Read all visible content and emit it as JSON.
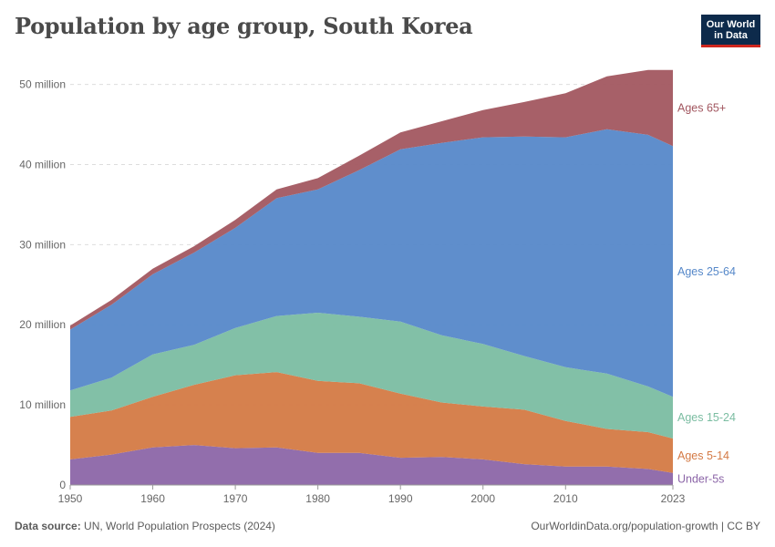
{
  "title": "Population by age group, South Korea",
  "logo": {
    "line1": "Our World",
    "line2": "in Data"
  },
  "footer": {
    "source_label": "Data source:",
    "source_text": "UN, World Population Prospects (2024)",
    "url": "OurWorldinData.org/population-growth | CC BY"
  },
  "chart_data": {
    "type": "area",
    "stacked": true,
    "title": "Population by age group, South Korea",
    "xlabel": "",
    "ylabel": "",
    "xlim": [
      1950,
      2023
    ],
    "ylim": [
      0,
      52000000
    ],
    "x_ticks": [
      1950,
      1960,
      1970,
      1980,
      1990,
      2000,
      2010,
      2023
    ],
    "y_ticks": [
      0,
      10000000,
      20000000,
      30000000,
      40000000,
      50000000
    ],
    "y_tick_labels": [
      "0",
      "10 million",
      "20 million",
      "30 million",
      "40 million",
      "50 million"
    ],
    "grid": "horizontal dashed",
    "legend": "inline labels at right end of series",
    "x": [
      1950,
      1955,
      1960,
      1965,
      1970,
      1975,
      1980,
      1985,
      1990,
      1995,
      2000,
      2005,
      2010,
      2015,
      2020,
      2023
    ],
    "series": [
      {
        "name": "Under-5s",
        "color": "#8c66a8",
        "values": [
          3200000,
          3800000,
          4700000,
          5000000,
          4600000,
          4700000,
          4000000,
          4000000,
          3400000,
          3500000,
          3200000,
          2600000,
          2300000,
          2300000,
          2000000,
          1500000
        ]
      },
      {
        "name": "Ages 5-14",
        "color": "#d47a45",
        "values": [
          5300000,
          5500000,
          6300000,
          7500000,
          9100000,
          9400000,
          9000000,
          8700000,
          8000000,
          6800000,
          6600000,
          6800000,
          5700000,
          4700000,
          4600000,
          4300000
        ]
      },
      {
        "name": "Ages 15-24",
        "color": "#7bbda2",
        "values": [
          3300000,
          4100000,
          5300000,
          5000000,
          5900000,
          7000000,
          8500000,
          8300000,
          9000000,
          8400000,
          7800000,
          6700000,
          6700000,
          6900000,
          5700000,
          5200000
        ]
      },
      {
        "name": "Ages 25-64",
        "color": "#5688c9",
        "values": [
          7600000,
          9100000,
          10000000,
          11500000,
          12500000,
          14700000,
          15400000,
          18300000,
          21500000,
          24000000,
          25800000,
          27400000,
          28700000,
          30500000,
          31400000,
          31300000
        ]
      },
      {
        "name": "Ages 65+",
        "color": "#a25760",
        "values": [
          500000,
          600000,
          700000,
          800000,
          1000000,
          1100000,
          1400000,
          1800000,
          2100000,
          2700000,
          3400000,
          4300000,
          5500000,
          6600000,
          8100000,
          9500000
        ]
      }
    ]
  }
}
